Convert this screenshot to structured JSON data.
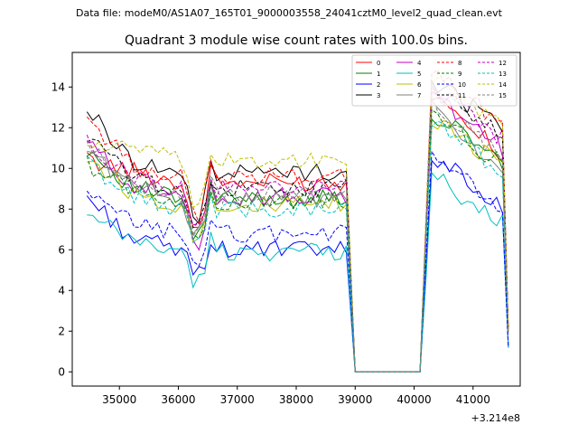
{
  "header": {
    "data_file": "Data file: modeM0/AS1A07_165T01_9000003558_24041cztM0_level2_quad_clean.evt"
  },
  "chart_data": {
    "type": "line",
    "title": "Quadrant 3 module wise count rates with 100.0s bins.",
    "xlabel": "",
    "ylabel": "",
    "x_offset_label": "+3.214e8",
    "xlim": [
      34200,
      41800
    ],
    "ylim": [
      -0.7,
      15.7
    ],
    "xticks": [
      35000,
      36000,
      37000,
      38000,
      39000,
      40000,
      41000
    ],
    "xtick_labels": [
      "35000",
      "36000",
      "37000",
      "38000",
      "39000",
      "40000",
      "41000"
    ],
    "yticks": [
      0,
      2,
      4,
      6,
      8,
      10,
      12,
      14
    ],
    "ytick_labels": [
      "0",
      "2",
      "4",
      "6",
      "8",
      "10",
      "12",
      "14"
    ],
    "legend_location": "upper right",
    "segments": [
      {
        "x_start": 34450,
        "x_end": 38900,
        "step": 100
      },
      {
        "x_start": 39000,
        "x_end": 40100,
        "step": 100
      },
      {
        "x_start": 40200,
        "x_end": 41600,
        "step": 100
      }
    ],
    "series": [
      {
        "name": "0",
        "color": "#ff0000",
        "style": "solid",
        "seg": [
          {
            "start": 10.4,
            "base": 9.3,
            "dip": 6.6,
            "end": 9.1
          },
          {
            "val": 0
          },
          {
            "start": 7.0,
            "peak": 13.5,
            "base": 10.8,
            "end": 2.0
          }
        ]
      },
      {
        "name": "1",
        "color": "#008000",
        "style": "solid",
        "seg": [
          {
            "start": 11.0,
            "base": 8.5,
            "dip": 6.2,
            "end": 9.0
          },
          {
            "val": 0
          },
          {
            "start": 7.0,
            "peak": 12.8,
            "base": 10.2,
            "end": 2.0
          }
        ]
      },
      {
        "name": "2",
        "color": "#0000ff",
        "style": "solid",
        "seg": [
          {
            "start": 8.6,
            "base": 6.0,
            "dip": 4.7,
            "end": 6.8
          },
          {
            "val": 0
          },
          {
            "start": 5.0,
            "peak": 10.7,
            "base": 8.0,
            "end": 1.2
          }
        ]
      },
      {
        "name": "3",
        "color": "#000000",
        "style": "solid",
        "seg": [
          {
            "start": 12.9,
            "base": 9.8,
            "dip": 7.0,
            "end": 9.5
          },
          {
            "val": 0
          },
          {
            "start": 7.0,
            "peak": 14.3,
            "base": 12.0,
            "end": 2.0
          }
        ]
      },
      {
        "name": "4",
        "color": "#bf00bf",
        "style": "solid",
        "seg": [
          {
            "start": 11.3,
            "base": 8.6,
            "dip": 5.8,
            "end": 9.2
          },
          {
            "val": 0
          },
          {
            "start": 7.0,
            "peak": 13.6,
            "base": 11.0,
            "end": 2.0
          }
        ]
      },
      {
        "name": "5",
        "color": "#00bfbf",
        "style": "solid",
        "seg": [
          {
            "start": 7.6,
            "base": 5.9,
            "dip": 4.1,
            "end": 6.2
          },
          {
            "val": 0
          },
          {
            "start": 4.5,
            "peak": 9.6,
            "base": 7.3,
            "end": 1.2
          }
        ]
      },
      {
        "name": "6",
        "color": "#bfbf00",
        "style": "solid",
        "seg": [
          {
            "start": 10.6,
            "base": 8.2,
            "dip": 6.4,
            "end": 8.5
          },
          {
            "val": 0
          },
          {
            "start": 6.5,
            "peak": 12.6,
            "base": 10.0,
            "end": 2.0
          }
        ]
      },
      {
        "name": "7",
        "color": "#808080",
        "style": "solid",
        "seg": [
          {
            "start": 11.0,
            "base": 8.5,
            "dip": 6.4,
            "end": 8.5
          },
          {
            "val": 0
          },
          {
            "start": 6.5,
            "peak": 12.9,
            "base": 10.0,
            "end": 2.0
          }
        ]
      },
      {
        "name": "8",
        "color": "#ff0000",
        "style": "dashed",
        "seg": [
          {
            "start": 12.5,
            "base": 9.6,
            "dip": 7.2,
            "end": 9.5
          },
          {
            "val": 0
          },
          {
            "start": 7.5,
            "peak": 15.0,
            "base": 12.2,
            "end": 2.0
          }
        ]
      },
      {
        "name": "9",
        "color": "#008000",
        "style": "dashed",
        "seg": [
          {
            "start": 10.2,
            "base": 8.4,
            "dip": 6.1,
            "end": 8.7
          },
          {
            "val": 0
          },
          {
            "start": 6.5,
            "peak": 12.5,
            "base": 10.2,
            "end": 2.0
          }
        ]
      },
      {
        "name": "10",
        "color": "#0000ff",
        "style": "dashed",
        "seg": [
          {
            "start": 8.6,
            "base": 6.8,
            "dip": 5.2,
            "end": 7.0
          },
          {
            "val": 0
          },
          {
            "start": 5.5,
            "peak": 10.4,
            "base": 8.2,
            "end": 1.2
          }
        ]
      },
      {
        "name": "11",
        "color": "#000000",
        "style": "dashed",
        "seg": [
          {
            "start": 11.6,
            "base": 9.0,
            "dip": 6.6,
            "end": 9.0
          },
          {
            "val": 0
          },
          {
            "start": 7.0,
            "peak": 13.9,
            "base": 11.6,
            "end": 2.0
          }
        ]
      },
      {
        "name": "12",
        "color": "#bf00bf",
        "style": "dashed",
        "seg": [
          {
            "start": 11.2,
            "base": 9.0,
            "dip": 6.8,
            "end": 9.0
          },
          {
            "val": 0
          },
          {
            "start": 7.0,
            "peak": 14.0,
            "base": 11.5,
            "end": 2.0
          }
        ]
      },
      {
        "name": "13",
        "color": "#00bfbf",
        "style": "dashed",
        "seg": [
          {
            "start": 10.3,
            "base": 8.0,
            "dip": 6.0,
            "end": 8.0
          },
          {
            "val": 0
          },
          {
            "start": 6.5,
            "peak": 12.4,
            "base": 9.8,
            "end": 2.0
          }
        ]
      },
      {
        "name": "14",
        "color": "#bfbf00",
        "style": "dashed",
        "seg": [
          {
            "start": 11.2,
            "base": 10.4,
            "dip": 7.2,
            "end": 10.2
          },
          {
            "val": 0
          },
          {
            "start": 7.5,
            "peak": 14.3,
            "base": 12.0,
            "end": 2.0
          }
        ]
      },
      {
        "name": "15",
        "color": "#808080",
        "style": "dashed",
        "seg": [
          {
            "start": 11.0,
            "base": 8.7,
            "dip": 6.6,
            "end": 8.8
          },
          {
            "val": 0
          },
          {
            "start": 7.0,
            "peak": 13.2,
            "base": 10.6,
            "end": 2.0
          }
        ]
      }
    ]
  }
}
